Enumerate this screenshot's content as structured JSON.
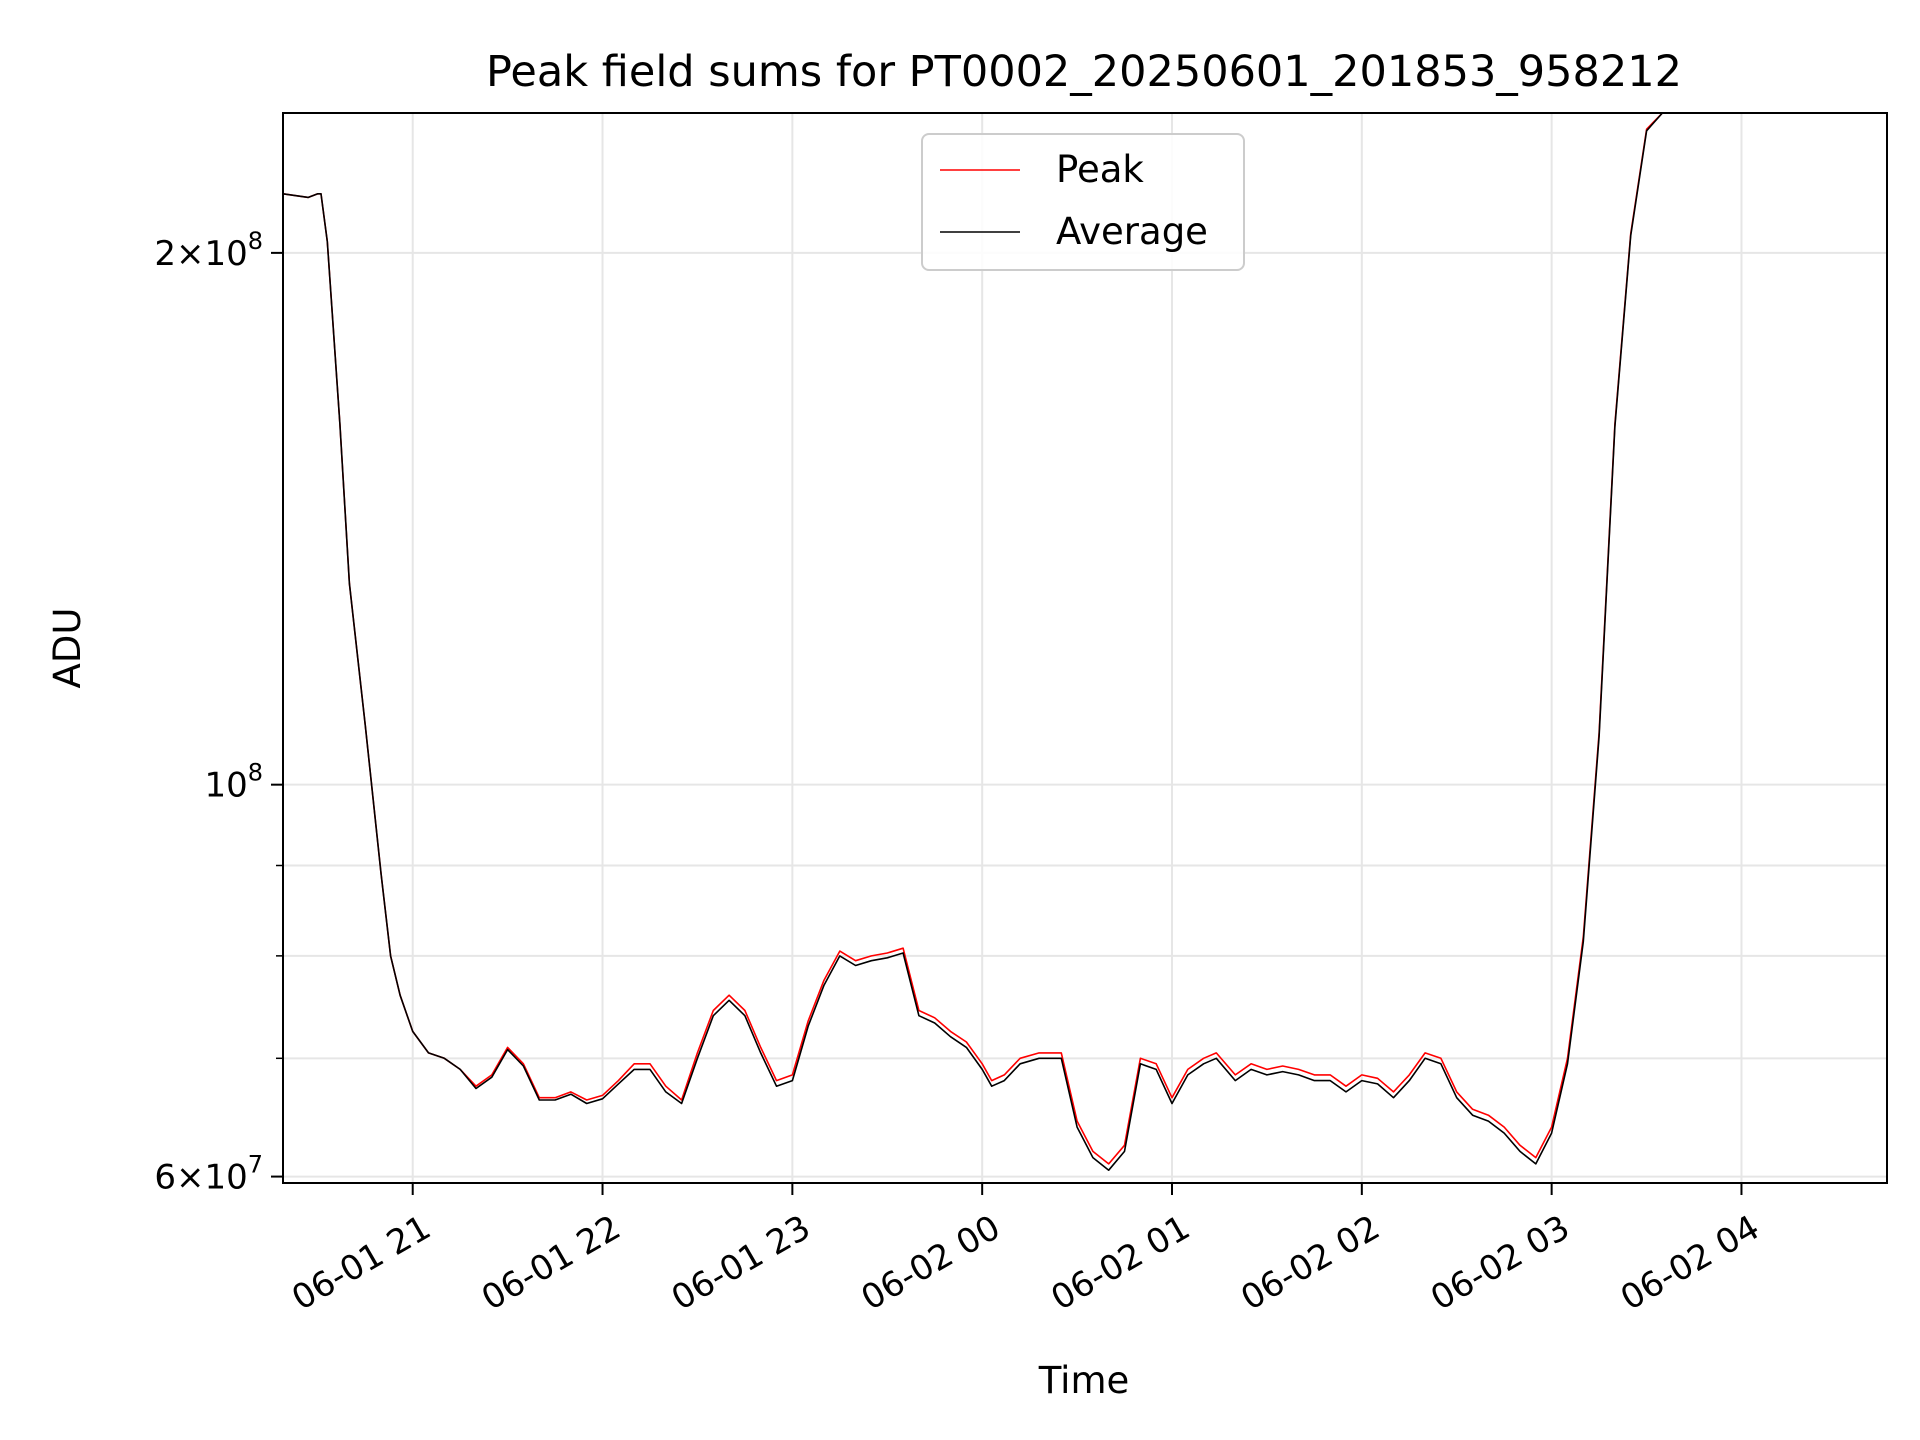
{
  "chart_data": {
    "type": "line",
    "title": "Peak field sums for PT0002_20250601_201853_958212",
    "xlabel": "Time",
    "ylabel": "ADU",
    "yscale": "log",
    "xlim": [
      "2025-06-01 20:19",
      "2025-06-02 04:46"
    ],
    "ylim": [
      59500000,
      240000000
    ],
    "x_tick_labels": [
      "06-01 21",
      "06-01 22",
      "06-01 23",
      "06-02 00",
      "06-02 01",
      "06-02 02",
      "06-02 03",
      "06-02 04"
    ],
    "y_tick_labels": [
      {
        "mantissa": "6",
        "exponent": "7",
        "value": 60000000
      },
      {
        "mantissa": "",
        "exponent": "8",
        "value": 100000000
      },
      {
        "mantissa": "2",
        "exponent": "8",
        "value": 200000000
      }
    ],
    "grid": true,
    "legend_position": "upper center",
    "series": [
      {
        "name": "Peak",
        "color": "#ff0000",
        "x": [
          "2025-06-01 20:19",
          "2025-06-01 20:27",
          "2025-06-01 20:30",
          "2025-06-01 20:31",
          "2025-06-01 20:33",
          "2025-06-01 20:37",
          "2025-06-01 20:40",
          "2025-06-01 20:45",
          "2025-06-01 20:50",
          "2025-06-01 20:53",
          "2025-06-01 20:56",
          "2025-06-01 21:00",
          "2025-06-01 21:05",
          "2025-06-01 21:10",
          "2025-06-01 21:15",
          "2025-06-01 21:20",
          "2025-06-01 21:25",
          "2025-06-01 21:30",
          "2025-06-01 21:35",
          "2025-06-01 21:40",
          "2025-06-01 21:45",
          "2025-06-01 21:50",
          "2025-06-01 21:55",
          "2025-06-01 22:00",
          "2025-06-01 22:05",
          "2025-06-01 22:10",
          "2025-06-01 22:15",
          "2025-06-01 22:20",
          "2025-06-01 22:25",
          "2025-06-01 22:30",
          "2025-06-01 22:35",
          "2025-06-01 22:40",
          "2025-06-01 22:45",
          "2025-06-01 22:50",
          "2025-06-01 22:55",
          "2025-06-01 23:00",
          "2025-06-01 23:05",
          "2025-06-01 23:10",
          "2025-06-01 23:15",
          "2025-06-01 23:20",
          "2025-06-01 23:25",
          "2025-06-01 23:30",
          "2025-06-01 23:35",
          "2025-06-01 23:40",
          "2025-06-01 23:45",
          "2025-06-01 23:50",
          "2025-06-01 23:55",
          "2025-06-02 00:00",
          "2025-06-02 00:03",
          "2025-06-02 00:07",
          "2025-06-02 00:12",
          "2025-06-02 00:18",
          "2025-06-02 00:25",
          "2025-06-02 00:30",
          "2025-06-02 00:35",
          "2025-06-02 00:40",
          "2025-06-02 00:45",
          "2025-06-02 00:50",
          "2025-06-02 00:55",
          "2025-06-02 01:00",
          "2025-06-02 01:05",
          "2025-06-02 01:10",
          "2025-06-02 01:14",
          "2025-06-02 01:20",
          "2025-06-02 01:25",
          "2025-06-02 01:30",
          "2025-06-02 01:35",
          "2025-06-02 01:40",
          "2025-06-02 01:45",
          "2025-06-02 01:50",
          "2025-06-02 01:55",
          "2025-06-02 02:00",
          "2025-06-02 02:05",
          "2025-06-02 02:10",
          "2025-06-02 02:15",
          "2025-06-02 02:20",
          "2025-06-02 02:25",
          "2025-06-02 02:30",
          "2025-06-02 02:35",
          "2025-06-02 02:40",
          "2025-06-02 02:45",
          "2025-06-02 02:50",
          "2025-06-02 02:55",
          "2025-06-02 03:00",
          "2025-06-02 03:05",
          "2025-06-02 03:10",
          "2025-06-02 03:15",
          "2025-06-02 03:20",
          "2025-06-02 03:25",
          "2025-06-02 03:30",
          "2025-06-02 03:35",
          "2025-06-02 03:40",
          "2025-06-02 03:45",
          "2025-06-02 03:50",
          "2025-06-02 03:55",
          "2025-06-02 04:00",
          "2025-06-02 04:05",
          "2025-06-02 04:10",
          "2025-06-02 04:15",
          "2025-06-02 04:20",
          "2025-06-02 04:25",
          "2025-06-02 04:30",
          "2025-06-02 04:35",
          "2025-06-02 04:40",
          "2025-06-02 04:43",
          "2025-06-02 04:46"
        ],
        "values": [
          216000000,
          215000000,
          216000000,
          216000000,
          203000000,
          160000000,
          130000000,
          108000000,
          89000000,
          80000000,
          76000000,
          72500000,
          70500000,
          70000000,
          69000000,
          67500000,
          68500000,
          71000000,
          69500000,
          66500000,
          66500000,
          67000000,
          66300000,
          66700000,
          68000000,
          69500000,
          69500000,
          67500000,
          66300000,
          70500000,
          74500000,
          76000000,
          74500000,
          71000000,
          68000000,
          68500000,
          73500000,
          77500000,
          80500000,
          79500000,
          80000000,
          80300000,
          80800000,
          74500000,
          73800000,
          72500000,
          71500000,
          69500000,
          68000000,
          68500000,
          70000000,
          70500000,
          70500000,
          64500000,
          62000000,
          61000000,
          62500000,
          70000000,
          69500000,
          66500000,
          69000000,
          70000000,
          70500000,
          68500000,
          69500000,
          69000000,
          69300000,
          69000000,
          68500000,
          68500000,
          67500000,
          68500000,
          68200000,
          67000000,
          68500000,
          70500000,
          70000000,
          67000000,
          65500000,
          65000000,
          64000000,
          62500000,
          61500000,
          64000000,
          70000000,
          82000000,
          107000000,
          160000000,
          205000000,
          235000000,
          240000000,
          240000000,
          240000000,
          240000000,
          240000000,
          240000000,
          240000000,
          240000000,
          240000000,
          240000000,
          240000000,
          240000000,
          240000000,
          240000000,
          240000000,
          240000000
        ]
      },
      {
        "name": "Average",
        "color": "#000000",
        "x": [
          "2025-06-01 20:19",
          "2025-06-01 20:27",
          "2025-06-01 20:30",
          "2025-06-01 20:31",
          "2025-06-01 20:33",
          "2025-06-01 20:37",
          "2025-06-01 20:40",
          "2025-06-01 20:45",
          "2025-06-01 20:50",
          "2025-06-01 20:53",
          "2025-06-01 20:56",
          "2025-06-01 21:00",
          "2025-06-01 21:05",
          "2025-06-01 21:10",
          "2025-06-01 21:15",
          "2025-06-01 21:20",
          "2025-06-01 21:25",
          "2025-06-01 21:30",
          "2025-06-01 21:35",
          "2025-06-01 21:40",
          "2025-06-01 21:45",
          "2025-06-01 21:50",
          "2025-06-01 21:55",
          "2025-06-01 22:00",
          "2025-06-01 22:05",
          "2025-06-01 22:10",
          "2025-06-01 22:15",
          "2025-06-01 22:20",
          "2025-06-01 22:25",
          "2025-06-01 22:30",
          "2025-06-01 22:35",
          "2025-06-01 22:40",
          "2025-06-01 22:45",
          "2025-06-01 22:50",
          "2025-06-01 22:55",
          "2025-06-01 23:00",
          "2025-06-01 23:05",
          "2025-06-01 23:10",
          "2025-06-01 23:15",
          "2025-06-01 23:20",
          "2025-06-01 23:25",
          "2025-06-01 23:30",
          "2025-06-01 23:35",
          "2025-06-01 23:40",
          "2025-06-01 23:45",
          "2025-06-01 23:50",
          "2025-06-01 23:55",
          "2025-06-02 00:00",
          "2025-06-02 00:03",
          "2025-06-02 00:07",
          "2025-06-02 00:12",
          "2025-06-02 00:18",
          "2025-06-02 00:25",
          "2025-06-02 00:30",
          "2025-06-02 00:35",
          "2025-06-02 00:40",
          "2025-06-02 00:45",
          "2025-06-02 00:50",
          "2025-06-02 00:55",
          "2025-06-02 01:00",
          "2025-06-02 01:05",
          "2025-06-02 01:10",
          "2025-06-02 01:14",
          "2025-06-02 01:20",
          "2025-06-02 01:25",
          "2025-06-02 01:30",
          "2025-06-02 01:35",
          "2025-06-02 01:40",
          "2025-06-02 01:45",
          "2025-06-02 01:50",
          "2025-06-02 01:55",
          "2025-06-02 02:00",
          "2025-06-02 02:05",
          "2025-06-02 02:10",
          "2025-06-02 02:15",
          "2025-06-02 02:20",
          "2025-06-02 02:25",
          "2025-06-02 02:30",
          "2025-06-02 02:35",
          "2025-06-02 02:40",
          "2025-06-02 02:45",
          "2025-06-02 02:50",
          "2025-06-02 02:55",
          "2025-06-02 03:00",
          "2025-06-02 03:05",
          "2025-06-02 03:10",
          "2025-06-02 03:15",
          "2025-06-02 03:20",
          "2025-06-02 03:25",
          "2025-06-02 03:30",
          "2025-06-02 03:35",
          "2025-06-02 03:40",
          "2025-06-02 03:45",
          "2025-06-02 03:50",
          "2025-06-02 03:55",
          "2025-06-02 04:00",
          "2025-06-02 04:05",
          "2025-06-02 04:10",
          "2025-06-02 04:15",
          "2025-06-02 04:20",
          "2025-06-02 04:25",
          "2025-06-02 04:30",
          "2025-06-02 04:35",
          "2025-06-02 04:40",
          "2025-06-02 04:43",
          "2025-06-02 04:46"
        ],
        "values": [
          216000000,
          215000000,
          216000000,
          216000000,
          203000000,
          160000000,
          130000000,
          108000000,
          89000000,
          80000000,
          76000000,
          72500000,
          70500000,
          70000000,
          69000000,
          67300000,
          68300000,
          70800000,
          69300000,
          66300000,
          66300000,
          66800000,
          66000000,
          66400000,
          67700000,
          69000000,
          69000000,
          67000000,
          66000000,
          70000000,
          74000000,
          75500000,
          74000000,
          70500000,
          67500000,
          68000000,
          73000000,
          77000000,
          80000000,
          79000000,
          79500000,
          79800000,
          80300000,
          74000000,
          73300000,
          72000000,
          71000000,
          69000000,
          67500000,
          68000000,
          69500000,
          70000000,
          70000000,
          64000000,
          61500000,
          60500000,
          62000000,
          69500000,
          69000000,
          66000000,
          68500000,
          69500000,
          70000000,
          68000000,
          69000000,
          68500000,
          68800000,
          68500000,
          68000000,
          68000000,
          67000000,
          68000000,
          67700000,
          66500000,
          68000000,
          70000000,
          69500000,
          66500000,
          65000000,
          64500000,
          63500000,
          62000000,
          61000000,
          63500000,
          69500000,
          81500000,
          106500000,
          159500000,
          204500000,
          234500000,
          240000000,
          240000000,
          240000000,
          240000000,
          240000000,
          240000000,
          240000000,
          240000000,
          240000000,
          240000000,
          240000000,
          240000000,
          240000000,
          240000000,
          240000000,
          240000000
        ]
      }
    ]
  }
}
